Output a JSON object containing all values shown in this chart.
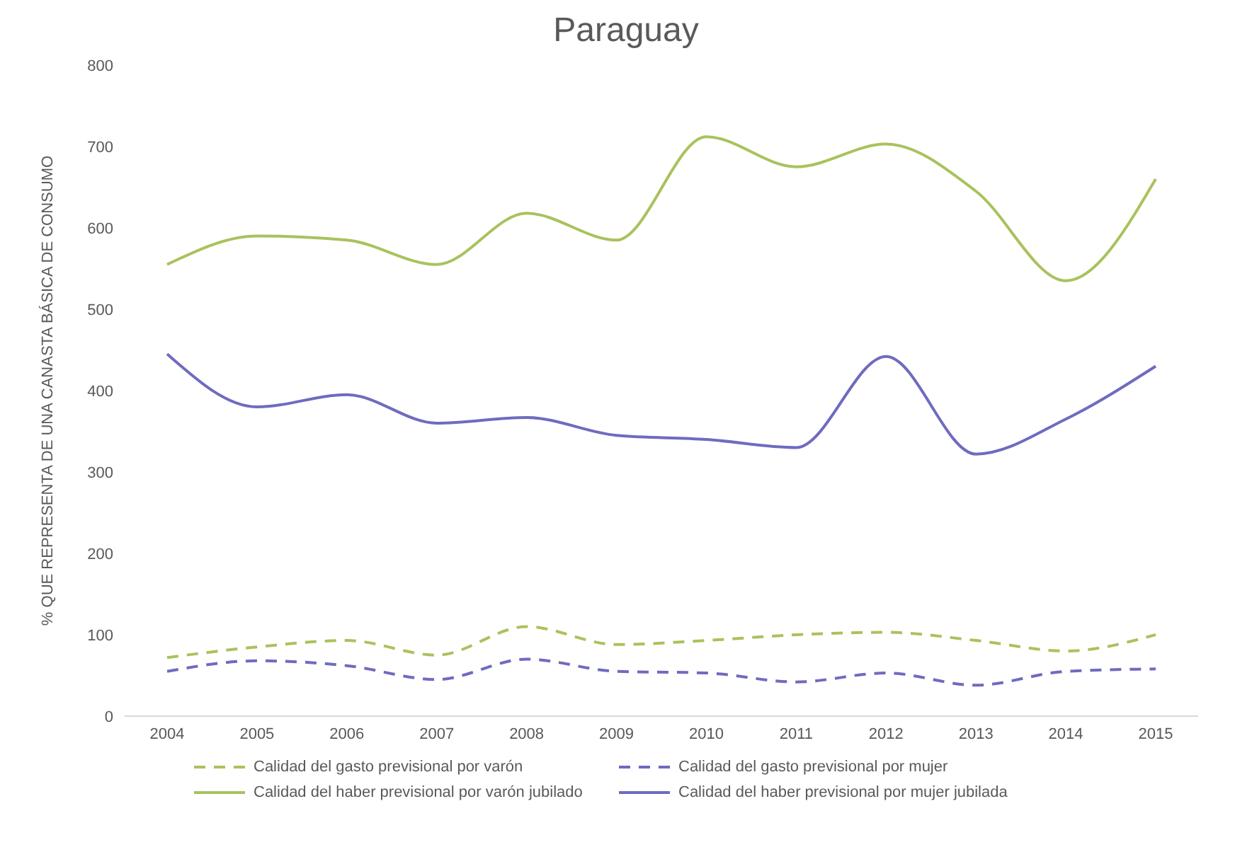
{
  "chart_data": {
    "type": "line",
    "title": "Paraguay",
    "ylabel": "% QUE REPRESENTA DE UNA CANASTA BÁSICA DE CONSUMO",
    "categories": [
      "2004",
      "2005",
      "2006",
      "2007",
      "2008",
      "2009",
      "2010",
      "2011",
      "2012",
      "2013",
      "2014",
      "2015"
    ],
    "ylim": [
      0,
      800
    ],
    "yticks": [
      0,
      100,
      200,
      300,
      400,
      500,
      600,
      700,
      800
    ],
    "grid": false,
    "legend": "bottom",
    "marker": "none",
    "series": [
      {
        "name": "Calidad del gasto previsional por varón",
        "color": "#a9c25d",
        "line_style": "dashed",
        "values": [
          72,
          85,
          93,
          75,
          110,
          88,
          93,
          100,
          103,
          93,
          80,
          100
        ]
      },
      {
        "name": "Calidad del gasto previsional por mujer",
        "color": "#6f6bbf",
        "line_style": "dashed",
        "values": [
          55,
          68,
          62,
          45,
          70,
          55,
          53,
          42,
          53,
          38,
          55,
          58
        ]
      },
      {
        "name": "Calidad del haber previsional por varón jubilado",
        "color": "#a9c25d",
        "line_style": "solid",
        "values": [
          555,
          590,
          585,
          555,
          618,
          585,
          712,
          675,
          703,
          645,
          535,
          660
        ]
      },
      {
        "name": "Calidad del haber previsional por mujer jubilada",
        "color": "#6f6bbf",
        "line_style": "solid",
        "values": [
          445,
          380,
          395,
          360,
          367,
          345,
          340,
          330,
          442,
          322,
          365,
          430
        ]
      }
    ]
  }
}
